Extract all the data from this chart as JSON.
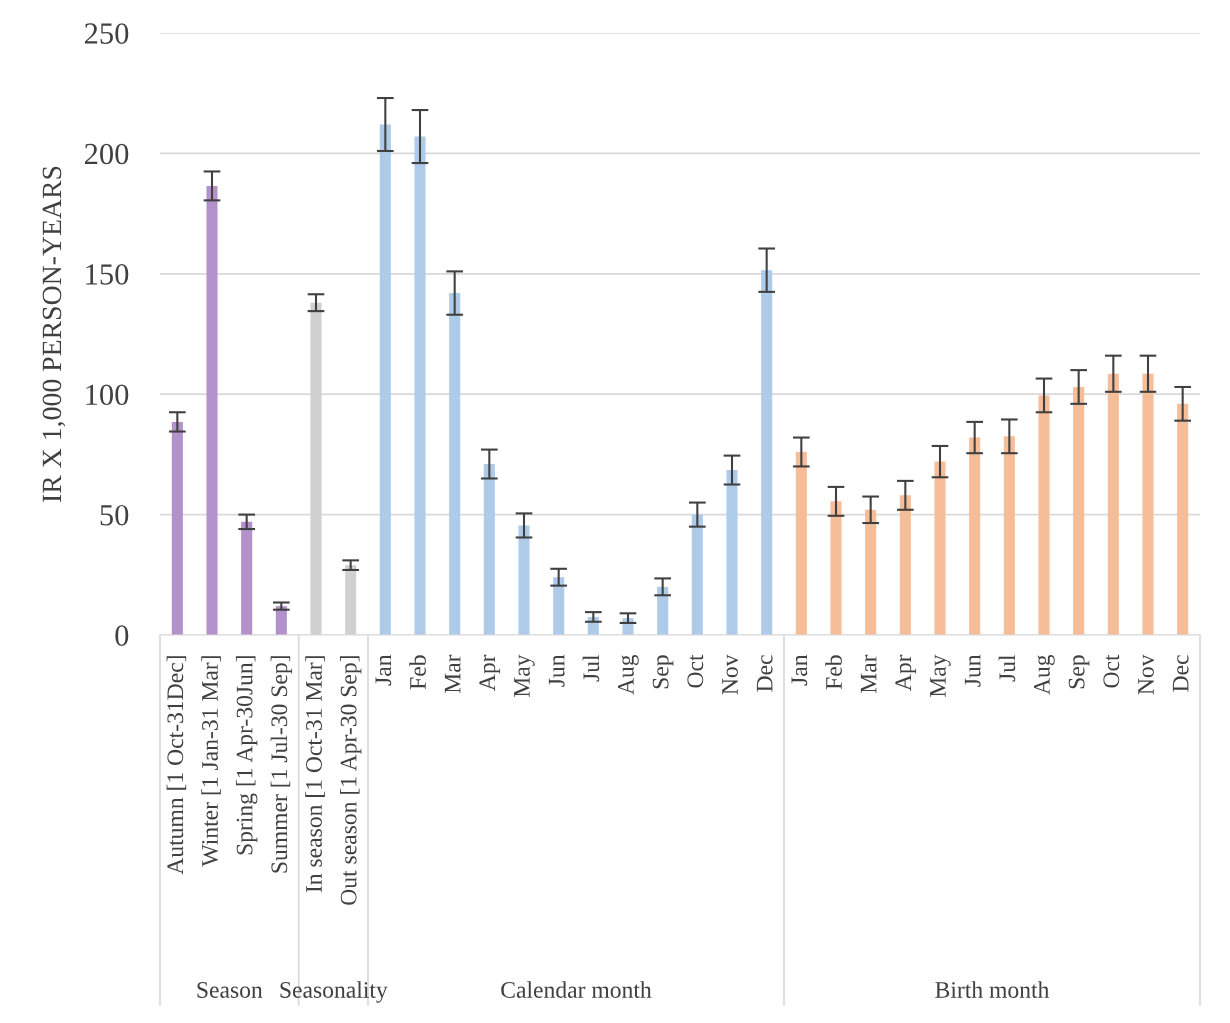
{
  "chart_data": {
    "type": "bar",
    "ylabel": "IR X 1,000 PERSON-YEARS",
    "categories": [
      "Autumn [1 Oct-31Dec]",
      "Winter [1 Jan-31 Mar]",
      "Spring [1 Apr-30Jun]",
      "Summer [1 Jul-30 Sep]",
      "In season [1 Oct-31 Mar]",
      "Out season [1 Apr-30 Sep]",
      "Jan",
      "Feb",
      "Mar",
      "Apr",
      "May",
      "Jun",
      "Jul",
      "Aug",
      "Sep",
      "Oct",
      "Nov",
      "Dec",
      "Jan",
      "Feb",
      "Mar",
      "Apr",
      "May",
      "Jun",
      "Jul",
      "Aug",
      "Sep",
      "Oct",
      "Nov",
      "Dec"
    ],
    "series": [
      {
        "color": "#b392cc",
        "values": [
          88.5,
          186.5,
          47,
          12,
          null,
          null,
          null,
          null,
          null,
          null,
          null,
          null,
          null,
          null,
          null,
          null,
          null,
          null,
          null,
          null,
          null,
          null,
          null,
          null,
          null,
          null,
          null,
          null,
          null,
          null
        ],
        "errors": [
          4,
          6,
          3,
          1.5,
          null,
          null,
          null,
          null,
          null,
          null,
          null,
          null,
          null,
          null,
          null,
          null,
          null,
          null,
          null,
          null,
          null,
          null,
          null,
          null,
          null,
          null,
          null,
          null,
          null,
          null
        ]
      },
      {
        "color": "#d0d0d0",
        "values": [
          null,
          null,
          null,
          null,
          138,
          29,
          null,
          null,
          null,
          null,
          null,
          null,
          null,
          null,
          null,
          null,
          null,
          null,
          null,
          null,
          null,
          null,
          null,
          null,
          null,
          null,
          null,
          null,
          null,
          null
        ],
        "errors": [
          null,
          null,
          null,
          null,
          3.5,
          2,
          null,
          null,
          null,
          null,
          null,
          null,
          null,
          null,
          null,
          null,
          null,
          null,
          null,
          null,
          null,
          null,
          null,
          null,
          null,
          null,
          null,
          null,
          null,
          null
        ]
      },
      {
        "color": "#aecbe9",
        "values": [
          null,
          null,
          null,
          null,
          null,
          null,
          212,
          207,
          142,
          71,
          45.5,
          24,
          7.5,
          7,
          20,
          50,
          68.5,
          151.5,
          null,
          null,
          null,
          null,
          null,
          null,
          null,
          null,
          null,
          null,
          null,
          null
        ],
        "errors": [
          null,
          null,
          null,
          null,
          null,
          null,
          11,
          11,
          9,
          6,
          5,
          3.5,
          2,
          2,
          3.5,
          5,
          6,
          9,
          null,
          null,
          null,
          null,
          null,
          null,
          null,
          null,
          null,
          null,
          null,
          null
        ]
      },
      {
        "color": "#f5bd98",
        "values": [
          null,
          null,
          null,
          null,
          null,
          null,
          null,
          null,
          null,
          null,
          null,
          null,
          null,
          null,
          null,
          null,
          null,
          null,
          76,
          55.5,
          52,
          58,
          72,
          82,
          82.5,
          99.5,
          103,
          108.5,
          108.5,
          96
        ],
        "errors": [
          null,
          null,
          null,
          null,
          null,
          null,
          null,
          null,
          null,
          null,
          null,
          null,
          null,
          null,
          null,
          null,
          null,
          null,
          6,
          6,
          5.5,
          6,
          6.5,
          6.5,
          7,
          7,
          7,
          7.5,
          7.5,
          7
        ]
      }
    ],
    "annotations": [
      "Season",
      "Seasonality",
      "Calendar month",
      "Birth month"
    ],
    "ylim": [
      0,
      250
    ],
    "yticks": [
      0,
      50,
      100,
      150,
      200,
      250
    ],
    "grid": "y",
    "legend": false
  }
}
